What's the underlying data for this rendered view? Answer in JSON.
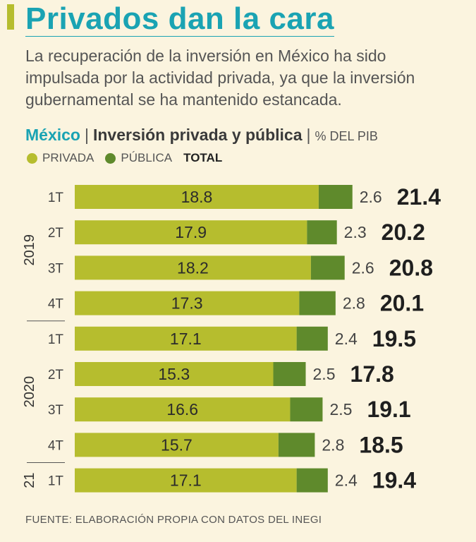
{
  "header": {
    "title": "Privados dan la cara",
    "subtitle": "La recuperación de la inversión en México ha sido impulsada por la actividad privada, ya que la inversión gubernamental se ha mantenido estancada."
  },
  "chart_head": {
    "country": "México",
    "name": "Inversión privada y pública",
    "unit": "% DEL PIB"
  },
  "legend": {
    "private_label": "PRIVADA",
    "public_label": "PÚBLICA",
    "total_label": "TOTAL"
  },
  "colors": {
    "private": "#b6bd2e",
    "public": "#5f8a2c",
    "accent": "#1aa3b3",
    "background": "#fbf4df"
  },
  "source": "FUENTE: ELABORACIÓN PROPIA CON DATOS DEL INEGI",
  "chart_data": {
    "type": "bar",
    "orientation": "horizontal",
    "stacked": true,
    "title": "Inversión privada y pública",
    "unit": "% DEL PIB",
    "year_groups": [
      {
        "label": "2019",
        "start": 0,
        "end": 3
      },
      {
        "label": "2020",
        "start": 4,
        "end": 7
      },
      {
        "label": "21",
        "start": 8,
        "end": 8
      }
    ],
    "categories": [
      "1T",
      "2T",
      "3T",
      "4T",
      "1T",
      "2T",
      "3T",
      "4T",
      "1T"
    ],
    "series": [
      {
        "name": "PRIVADA",
        "values": [
          18.8,
          17.9,
          18.2,
          17.3,
          17.1,
          15.3,
          16.6,
          15.7,
          17.1
        ]
      },
      {
        "name": "PÚBLICA",
        "values": [
          2.6,
          2.3,
          2.6,
          2.8,
          2.4,
          2.5,
          2.5,
          2.8,
          2.4
        ]
      }
    ],
    "totals": [
      21.4,
      20.2,
      20.8,
      20.1,
      19.5,
      17.8,
      19.1,
      18.5,
      19.4
    ],
    "private_labels": [
      "18.8",
      "17.9",
      "18.2",
      "17.3",
      "17.1",
      "15.3",
      "16.6",
      "15.7",
      "17.1"
    ],
    "public_labels": [
      "2.6",
      "2.3",
      "2.6",
      "2.8",
      "2.4",
      "2.5",
      "2.5",
      "2.8",
      "2.4"
    ],
    "total_labels": [
      "21.4",
      "20.2",
      "20.8",
      "20.1",
      "19.5",
      "17.8",
      "19.1",
      "18.5",
      "19.4"
    ]
  }
}
